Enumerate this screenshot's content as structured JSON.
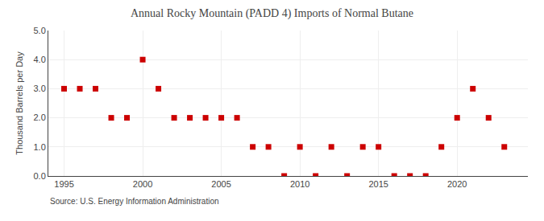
{
  "chart_data": {
    "type": "scatter",
    "title": "Annual Rocky Mountain (PADD 4) Imports of Normal Butane",
    "ylabel": "Thousand Barrels per Day",
    "annotations": [
      "Source: U.S. Energy Information Administration"
    ],
    "x": [
      1995,
      1996,
      1997,
      1998,
      1999,
      2000,
      2001,
      2002,
      2003,
      2004,
      2005,
      2006,
      2007,
      2008,
      2009,
      2010,
      2011,
      2012,
      2013,
      2014,
      2015,
      2016,
      2017,
      2018,
      2019,
      2020,
      2021,
      2022,
      2023
    ],
    "values": [
      3.0,
      3.0,
      3.0,
      2.0,
      2.0,
      4.0,
      3.0,
      2.0,
      2.0,
      2.0,
      2.0,
      2.0,
      1.0,
      1.0,
      0.0,
      1.0,
      0.0,
      1.0,
      0.0,
      1.0,
      1.0,
      0.0,
      0.0,
      0.0,
      1.0,
      2.0,
      3.0,
      2.0,
      1.0
    ],
    "color": "#cc0000",
    "marker": "square",
    "xlim": [
      1994,
      2024.5
    ],
    "ylim": [
      0.0,
      5.0
    ],
    "xticks": [
      1995,
      2000,
      2005,
      2010,
      2015,
      2020
    ],
    "yticks": [
      {
        "value": 0.0,
        "label": "0.0"
      },
      {
        "value": 1.0,
        "label": "1.0"
      },
      {
        "value": 2.0,
        "label": "2.0"
      },
      {
        "value": 3.0,
        "label": "3.0"
      },
      {
        "value": 4.0,
        "label": "4.0"
      },
      {
        "value": 5.0,
        "label": "5.0"
      }
    ],
    "grid": true
  }
}
